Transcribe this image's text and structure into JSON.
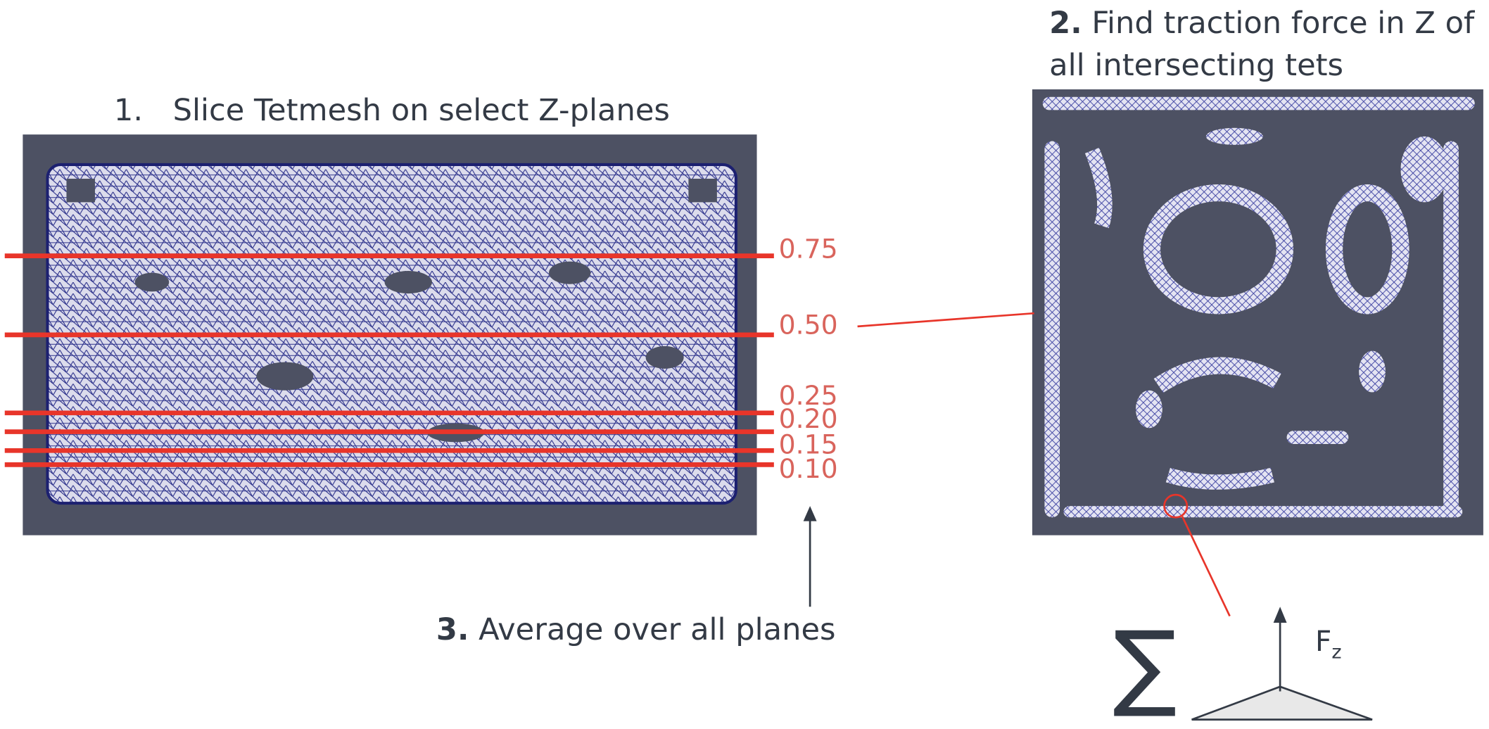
{
  "step1": {
    "number": "1.",
    "text": "Slice Tetmesh on select Z-planes"
  },
  "planes": [
    "0.75",
    "0.50",
    "0.25",
    "0.20",
    "0.15",
    "0.10"
  ],
  "step2": {
    "number": "2.",
    "text_lines": [
      "Find traction force in Z of",
      "all intersecting tets"
    ]
  },
  "step3": {
    "number": "3.",
    "text": "Average over all planes"
  },
  "sum_symbol": "∑",
  "force": {
    "symbol": "F",
    "subscript": "z"
  }
}
